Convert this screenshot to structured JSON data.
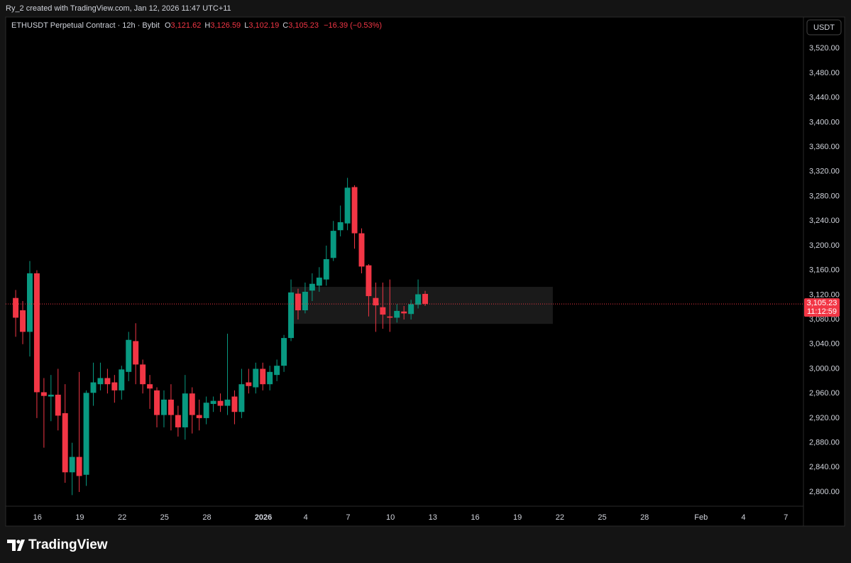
{
  "header": {
    "credit": "Ry_2 created with TradingView.com, Jan 12, 2026 11:47 UTC+11"
  },
  "chart_data": {
    "type": "candlestick",
    "symbol": "ETHUSDT Perpetual Contract · 12h · Bybit",
    "ohlc_legend": {
      "open_label": "O",
      "open": "3,121.62",
      "high_label": "H",
      "high": "3,126.59",
      "low_label": "L",
      "low": "3,102.19",
      "close_label": "C",
      "close": "3,105.23",
      "change": "−16.39 (−0.53%)"
    },
    "currency": "USDT",
    "up_color": "#089981",
    "down_color": "#f23645",
    "x": [
      "2025-12-14 11:00",
      "2025-12-14 23:00",
      "2025-12-15 11:00",
      "2025-12-15 23:00",
      "2025-12-16 11:00",
      "2025-12-16 23:00",
      "2025-12-17 11:00",
      "2025-12-17 23:00",
      "2025-12-18 11:00",
      "2025-12-18 23:00",
      "2025-12-19 11:00",
      "2025-12-19 23:00",
      "2025-12-20 11:00",
      "2025-12-20 23:00",
      "2025-12-21 11:00",
      "2025-12-21 23:00",
      "2025-12-22 11:00",
      "2025-12-22 23:00",
      "2025-12-23 11:00",
      "2025-12-23 23:00",
      "2025-12-24 11:00",
      "2025-12-24 23:00",
      "2025-12-25 11:00",
      "2025-12-25 23:00",
      "2025-12-26 11:00",
      "2025-12-26 23:00",
      "2025-12-27 11:00",
      "2025-12-27 23:00",
      "2025-12-28 11:00",
      "2025-12-28 23:00",
      "2025-12-29 11:00",
      "2025-12-29 23:00",
      "2025-12-30 11:00",
      "2025-12-30 23:00",
      "2025-12-31 11:00",
      "2025-12-31 23:00",
      "2026-01-01 11:00",
      "2026-01-01 23:00",
      "2026-01-02 11:00",
      "2026-01-02 23:00",
      "2026-01-03 11:00",
      "2026-01-03 23:00",
      "2026-01-04 11:00",
      "2026-01-04 23:00",
      "2026-01-05 11:00",
      "2026-01-05 23:00",
      "2026-01-06 11:00",
      "2026-01-06 23:00",
      "2026-01-07 11:00",
      "2026-01-07 23:00",
      "2026-01-08 11:00",
      "2026-01-08 23:00",
      "2026-01-09 11:00",
      "2026-01-09 23:00",
      "2026-01-10 11:00",
      "2026-01-10 23:00",
      "2026-01-11 11:00",
      "2026-01-11 23:00",
      "2026-01-12 11:00"
    ],
    "open": [
      3115,
      3095,
      3060,
      3155,
      2962,
      2955,
      2958,
      2928,
      2832,
      2857,
      2828,
      2961,
      2975,
      2985,
      2978,
      2965,
      2995,
      3045,
      3007,
      2975,
      2965,
      2925,
      2950,
      2925,
      2905,
      2960,
      2925,
      2920,
      2943,
      2948,
      2940,
      2955,
      2930,
      2978,
      2970,
      3000,
      2975,
      2990,
      3005,
      3050,
      3122,
      3095,
      3127,
      3135,
      3145,
      3180,
      3225,
      3236,
      3295,
      3220,
      3168,
      3115,
      3100,
      3085,
      3083,
      3093,
      3089,
      3104,
      3121.62
    ],
    "high": [
      3128,
      3110,
      3175,
      3160,
      2985,
      2990,
      3000,
      2975,
      2880,
      2995,
      2965,
      3010,
      3010,
      3000,
      2990,
      3005,
      3060,
      3074,
      3015,
      2990,
      2970,
      2965,
      2975,
      2940,
      2990,
      2970,
      2950,
      2955,
      2955,
      2960,
      3057,
      2965,
      3000,
      3000,
      3010,
      3010,
      3005,
      3015,
      3055,
      3145,
      3130,
      3140,
      3155,
      3165,
      3200,
      3240,
      3265,
      3310,
      3298,
      3228,
      3170,
      3140,
      3140,
      3145,
      3105,
      3102,
      3112,
      3145,
      3126.59
    ],
    "low": [
      3052,
      3040,
      3020,
      2920,
      2872,
      2915,
      2900,
      2815,
      2795,
      2800,
      2810,
      2940,
      2965,
      2960,
      2945,
      2950,
      2980,
      2975,
      2960,
      2935,
      2905,
      2905,
      2900,
      2890,
      2885,
      2895,
      2900,
      2910,
      2930,
      2930,
      2925,
      2910,
      2920,
      2960,
      2960,
      2965,
      2965,
      2980,
      2995,
      3045,
      3080,
      3090,
      3110,
      3125,
      3135,
      3175,
      3215,
      3225,
      3195,
      3155,
      3085,
      3060,
      3065,
      3060,
      3075,
      3080,
      3080,
      3098,
      3102.19
    ],
    "close": [
      3083,
      3060,
      3155,
      2962,
      2956,
      2958,
      2924,
      2832,
      2857,
      2826,
      2961,
      2978,
      2985,
      2975,
      2965,
      2999,
      3047,
      3007,
      2975,
      2968,
      2925,
      2950,
      2925,
      2905,
      2960,
      2925,
      2920,
      2945,
      2948,
      2940,
      2950,
      2930,
      2975,
      2972,
      3000,
      2975,
      2995,
      3005,
      3050,
      3124,
      3095,
      3125,
      3138,
      3148,
      3178,
      3224,
      3238,
      3294,
      3220,
      3166,
      3118,
      3103,
      3088,
      3083,
      3094,
      3090,
      3105,
      3121,
      3105.23
    ],
    "xlim": [
      "2025-12-13 18:00",
      "2026-02-08 06:00"
    ],
    "xticks": [
      {
        "value": "2025-12-16 00:00",
        "label": "16"
      },
      {
        "value": "2025-12-19 00:00",
        "label": "19"
      },
      {
        "value": "2025-12-22 00:00",
        "label": "22"
      },
      {
        "value": "2025-12-25 00:00",
        "label": "25"
      },
      {
        "value": "2025-12-28 00:00",
        "label": "28"
      },
      {
        "value": "2026-01-01 00:00",
        "label": "2026"
      },
      {
        "value": "2026-01-04 00:00",
        "label": "4"
      },
      {
        "value": "2026-01-07 00:00",
        "label": "7"
      },
      {
        "value": "2026-01-10 00:00",
        "label": "10"
      },
      {
        "value": "2026-01-13 00:00",
        "label": "13"
      },
      {
        "value": "2026-01-16 00:00",
        "label": "16"
      },
      {
        "value": "2026-01-19 00:00",
        "label": "19"
      },
      {
        "value": "2026-01-22 00:00",
        "label": "22"
      },
      {
        "value": "2026-01-25 00:00",
        "label": "25"
      },
      {
        "value": "2026-01-28 00:00",
        "label": "28"
      },
      {
        "value": "2026-02-01 00:00",
        "label": "Feb"
      },
      {
        "value": "2026-02-04 00:00",
        "label": "4"
      },
      {
        "value": "2026-02-07 00:00",
        "label": "7"
      }
    ],
    "ylim": [
      2777,
      3571
    ],
    "yticks": [
      {
        "value": 2800,
        "label": "2,800.00"
      },
      {
        "value": 2840,
        "label": "2,840.00"
      },
      {
        "value": 2880,
        "label": "2,880.00"
      },
      {
        "value": 2920,
        "label": "2,920.00"
      },
      {
        "value": 2960,
        "label": "2,960.00"
      },
      {
        "value": 3000,
        "label": "3,000.00"
      },
      {
        "value": 3040,
        "label": "3,040.00"
      },
      {
        "value": 3080,
        "label": "3,080.00"
      },
      {
        "value": 3120,
        "label": "3,120.00"
      },
      {
        "value": 3160,
        "label": "3,160.00"
      },
      {
        "value": 3200,
        "label": "3,200.00"
      },
      {
        "value": 3240,
        "label": "3,240.00"
      },
      {
        "value": 3280,
        "label": "3,280.00"
      },
      {
        "value": 3320,
        "label": "3,320.00"
      },
      {
        "value": 3360,
        "label": "3,360.00"
      },
      {
        "value": 3400,
        "label": "3,400.00"
      },
      {
        "value": 3440,
        "label": "3,440.00"
      },
      {
        "value": 3480,
        "label": "3,480.00"
      },
      {
        "value": 3520,
        "label": "3,520.00"
      }
    ],
    "grid": false,
    "last_price": {
      "value": 3105.23,
      "label": "3,105.23"
    },
    "countdown": "11:12:59",
    "zone": {
      "x": [
        "2026-01-03 00:00",
        "2026-01-21 12:00"
      ],
      "y": [
        3133,
        3073
      ]
    }
  },
  "footer": {
    "brand": "TradingView"
  }
}
